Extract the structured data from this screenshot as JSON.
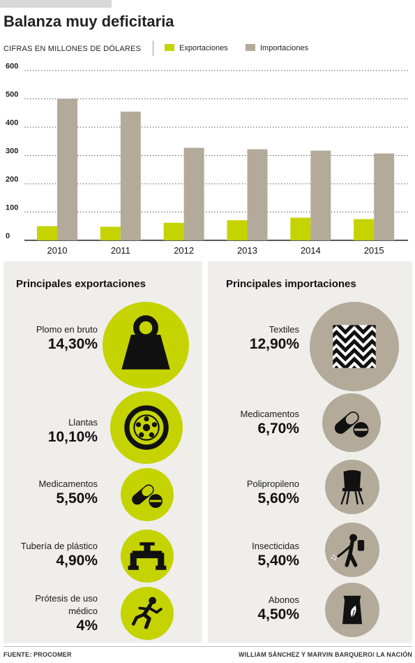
{
  "title": "Balanza muy deficitaria",
  "unit_label": "CIFRAS EN MILLONES DE DÓLARES",
  "colors": {
    "exports": "#c5d300",
    "imports": "#b3aa9a",
    "panel": "#efeeeb",
    "icon": "#111111"
  },
  "chart_data": {
    "type": "bar",
    "categories": [
      "2010",
      "2011",
      "2012",
      "2013",
      "2014",
      "2015"
    ],
    "series": [
      {
        "name": "Exportaciones",
        "values": [
          50,
          48,
          62,
          71,
          80,
          75
        ]
      },
      {
        "name": "Importaciones",
        "values": [
          500,
          455,
          327,
          322,
          317,
          307
        ]
      }
    ],
    "yticks": [
      "0",
      "100",
      "200",
      "300",
      "400",
      "500",
      "600"
    ],
    "ylim": [
      0,
      600
    ],
    "grid": true,
    "legend": "top"
  },
  "exports": {
    "heading": "Principales exportaciones",
    "items": [
      {
        "label": "Plomo en bruto",
        "value": "14,30%",
        "icon": "weight-icon"
      },
      {
        "label": "Llantas",
        "value": "10,10%",
        "icon": "tire-icon"
      },
      {
        "label": "Medicamentos",
        "value": "5,50%",
        "icon": "pills-icon"
      },
      {
        "label": "Tubería de plástico",
        "value": "4,90%",
        "icon": "pipe-faucet-icon"
      },
      {
        "label": "Prótesis de uso",
        "label2": "médico",
        "value": "4%",
        "icon": "prosthetic-runner-icon"
      }
    ]
  },
  "imports": {
    "heading": "Principales importaciones",
    "items": [
      {
        "label": "Textiles",
        "value": "12,90%",
        "icon": "textile-pattern-icon"
      },
      {
        "label": "Medicamentos",
        "value": "6,70%",
        "icon": "pills-icon"
      },
      {
        "label": "Polipropileno",
        "value": "5,60%",
        "icon": "chair-icon"
      },
      {
        "label": "Insecticidas",
        "value": "5,40%",
        "icon": "sprayer-person-icon"
      },
      {
        "label": "Abonos",
        "value": "4,50%",
        "icon": "fertilizer-bag-icon"
      }
    ]
  },
  "footer": {
    "source": "FUENTE: PROCOMER",
    "credit": "WILLIAM SÁNCHEZ Y MARVIN BARQUERO/ LA NACIÓN"
  }
}
